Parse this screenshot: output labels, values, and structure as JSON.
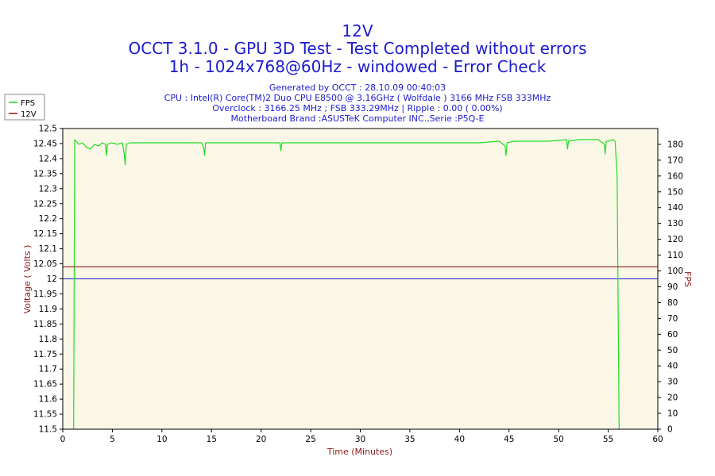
{
  "chart_data": {
    "type": "line",
    "title_lines": [
      "12V",
      "OCCT 3.1.0 - GPU 3D Test - Test Completed without errors",
      "1h - 1024x768@60Hz - windowed - Error Check"
    ],
    "info_lines": [
      "Generated by OCCT : 28.10.09 00:40:03",
      "CPU : Intel(R) Core(TM)2 Duo CPU E8500 @ 3.16GHz ( Wolfdale ) 3166 MHz FSB 333MHz",
      "Overclock : 3166.25 MHz ; FSB 333.29MHz | Ripple : 0.00 ( 0.00%)",
      "Motherboard Brand :ASUSTeK Computer INC.,Serie :P5Q-E"
    ],
    "xlabel": "Time (Minutes)",
    "ylabel_left": "Voltage ( Volts )",
    "ylabel_right": "FPS",
    "xlim": [
      0,
      60
    ],
    "ylim_left": [
      11.5,
      12.5
    ],
    "ylim_right": [
      0,
      190
    ],
    "x_ticks": [
      "0",
      "5",
      "10",
      "15",
      "20",
      "25",
      "30",
      "35",
      "40",
      "45",
      "50",
      "55",
      "60"
    ],
    "y_left_ticks": [
      "12.5",
      "12.45",
      "12.4",
      "12.35",
      "12.3",
      "12.25",
      "12.2",
      "12.15",
      "12.1",
      "12.05",
      "12",
      "11.95",
      "11.9",
      "11.85",
      "11.8",
      "11.75",
      "11.7",
      "11.65",
      "11.6",
      "11.55",
      "11.5"
    ],
    "y_right_ticks": [
      "180",
      "170",
      "160",
      "150",
      "140",
      "130",
      "120",
      "110",
      "100",
      "90",
      "80",
      "70",
      "60",
      "50",
      "40",
      "30",
      "20",
      "10",
      "0"
    ],
    "legend_placement": "top-left outside",
    "grid": false,
    "colors": {
      "background": "#fbf7e7",
      "fps": "#22dd22",
      "v12": "#8b1a1a",
      "reference": "#1c1ccf",
      "text": "#1c1ccf",
      "axis_label": "#8b1a1a"
    },
    "series": [
      {
        "name": "FPS",
        "axis": "right",
        "x": [
          1.1,
          1.2,
          1.6,
          2.0,
          2.4,
          2.8,
          3.2,
          3.6,
          4.0,
          4.3,
          4.4,
          4.5,
          4.9,
          5.5,
          6.0,
          6.2,
          6.3,
          6.4,
          6.8,
          7.5,
          8.5,
          10.0,
          12.0,
          14.0,
          14.2,
          14.3,
          14.4,
          16.0,
          18.0,
          20.0,
          21.9,
          22.0,
          22.1,
          24.0,
          26.0,
          28.0,
          30.0,
          32.0,
          34.0,
          36.0,
          38.0,
          40.0,
          42.0,
          44.0,
          44.6,
          44.7,
          44.8,
          45.5,
          47.0,
          49.0,
          50.8,
          50.9,
          51.0,
          52.0,
          53.0,
          54.0,
          54.6,
          54.7,
          54.8,
          55.0,
          55.5,
          55.7,
          55.9,
          56.1
        ],
        "y": [
          0,
          183,
          180,
          181,
          178,
          177,
          180,
          179,
          181,
          180,
          173,
          180,
          181,
          180,
          181,
          174,
          167,
          180,
          181,
          181,
          181,
          181,
          181,
          181,
          178,
          173,
          181,
          181,
          181,
          181,
          181,
          176,
          181,
          181,
          181,
          181,
          181,
          181,
          181,
          181,
          181,
          181,
          181,
          182,
          179,
          173,
          181,
          182,
          182,
          182,
          183,
          177,
          182,
          183,
          183,
          183,
          180,
          174,
          182,
          182,
          183,
          182,
          160,
          0
        ]
      },
      {
        "name": "12V",
        "axis": "left",
        "x": [
          0,
          60
        ],
        "y": [
          12.04,
          12.04
        ]
      }
    ]
  }
}
